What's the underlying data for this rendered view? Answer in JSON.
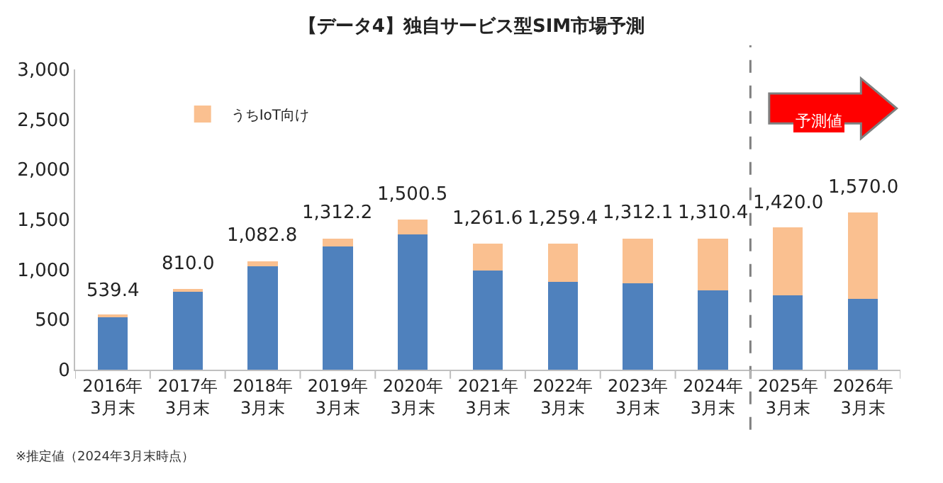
{
  "chart_data": {
    "type": "bar",
    "title": "【データ4】独自サービス型SIM市場予測",
    "stacked": true,
    "categories": [
      "2016年\n3月末",
      "2017年\n3月末",
      "2018年\n3月末",
      "2019年\n3月末",
      "2020年\n3月末",
      "2021年\n3月末",
      "2022年\n3月末",
      "2023年\n3月末",
      "2024年\n3月末",
      "2025年\n3月末",
      "2026年\n3月末"
    ],
    "series": [
      {
        "color": "#4f81bd",
        "values": [
          530,
          780,
          1030,
          1230,
          1350,
          990,
          880,
          860,
          790,
          740,
          710
        ]
      },
      {
        "name": "うちIoT向け",
        "color": "#fac090",
        "values": [
          9.4,
          30,
          52.8,
          82.2,
          150.5,
          271.6,
          379.4,
          452.1,
          520.4,
          680,
          860
        ]
      }
    ],
    "totals": [
      "539.4",
      "810.0",
      "1,082.8",
      "1,312.2",
      "1,500.5",
      "1,261.6",
      "1,259.4",
      "1,312.1",
      "1,310.4",
      "1,420.0",
      "1,570.0"
    ],
    "ylim": [
      0,
      3000
    ],
    "yticks": [
      {
        "value": 0,
        "label": "0"
      },
      {
        "value": 500,
        "label": "500"
      },
      {
        "value": 1000,
        "label": "1,000"
      },
      {
        "value": 1500,
        "label": "1,500"
      },
      {
        "value": 2000,
        "label": "2,000"
      },
      {
        "value": 2500,
        "label": "2,500"
      },
      {
        "value": 3000,
        "label": "3,000"
      }
    ],
    "legend": "top left",
    "annotations": [
      "予測値",
      "※推定値（2024年3月末時点）"
    ]
  }
}
